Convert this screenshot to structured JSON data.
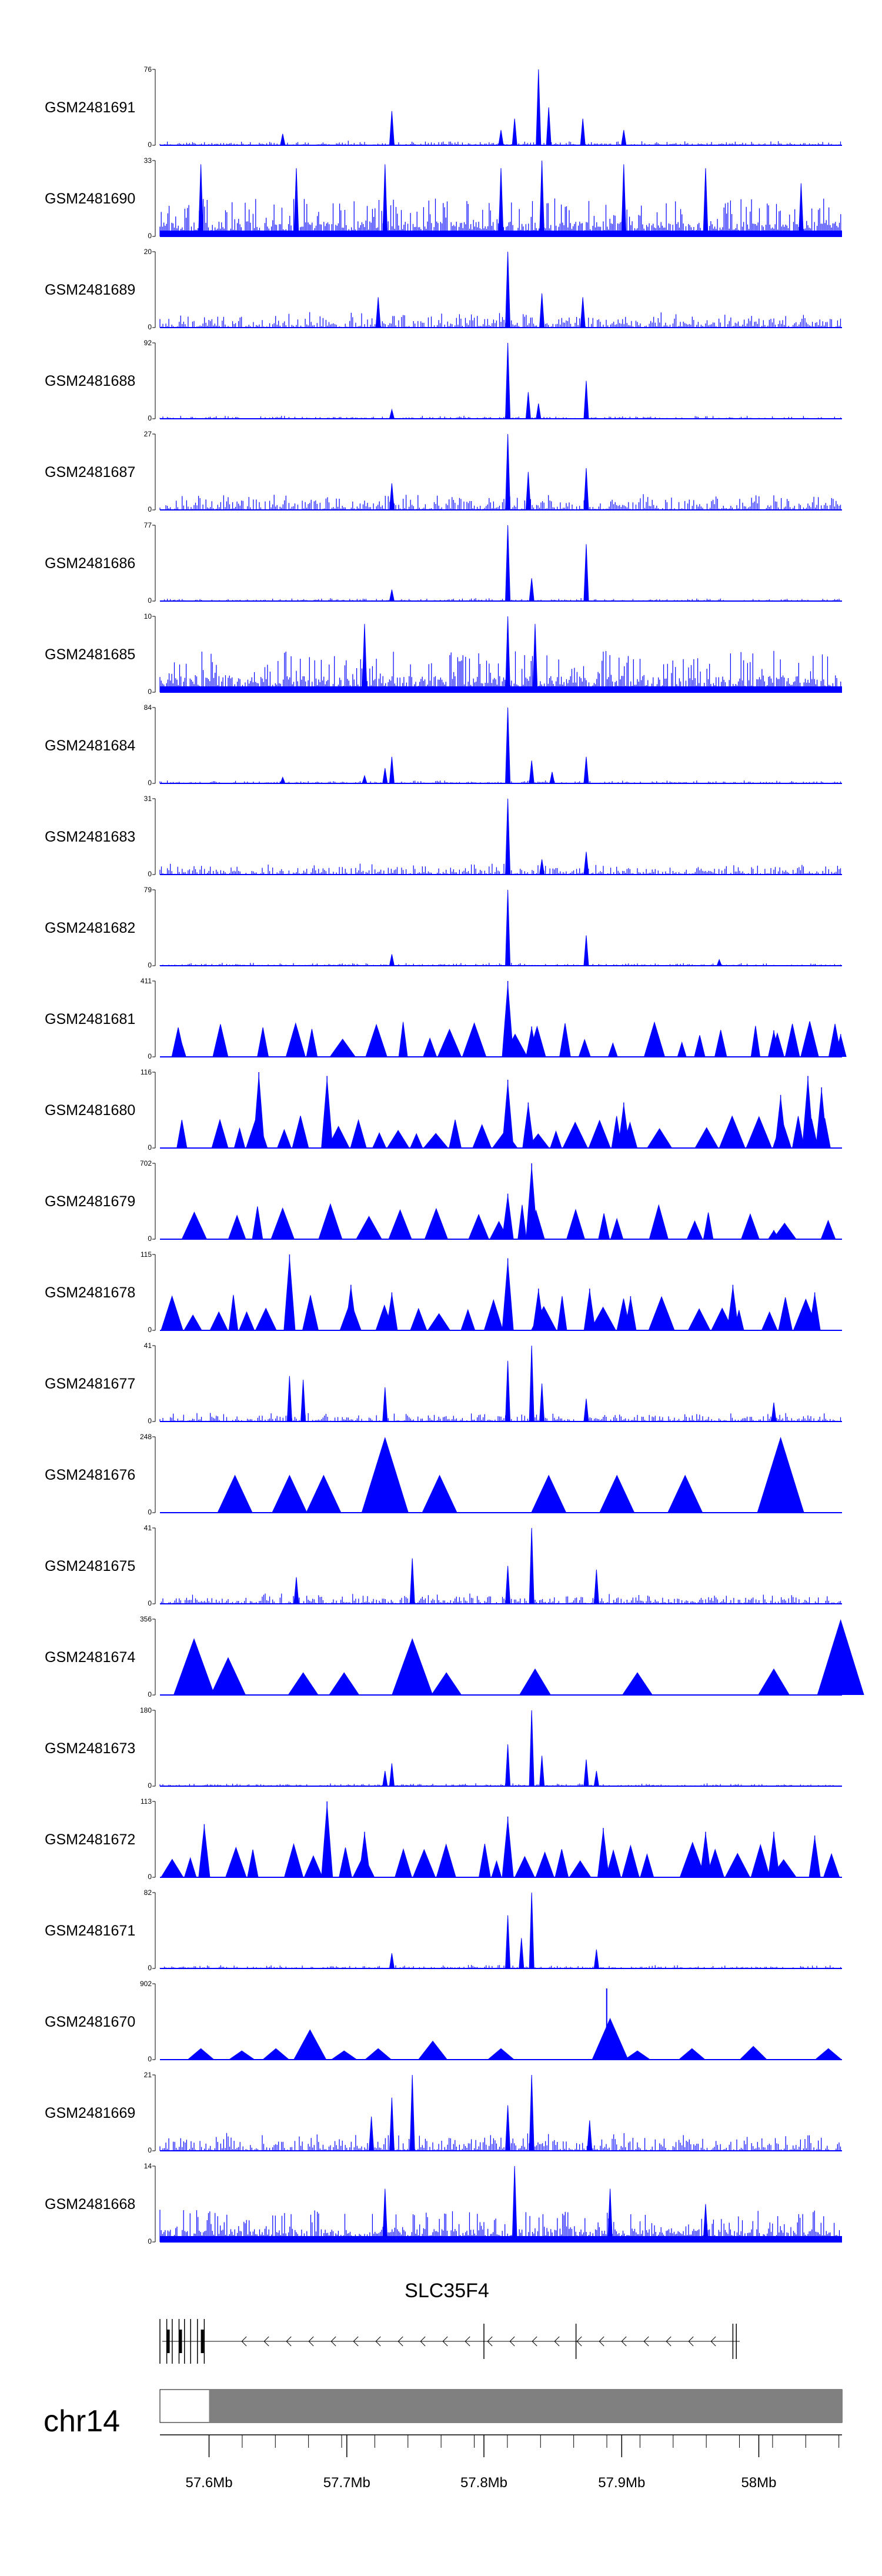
{
  "tracks": [
    {
      "name": "GSM2481691",
      "ymax": "76",
      "ymin": "0",
      "style": "noise",
      "seed": 11,
      "density": 0.06,
      "peaks": [
        [
          0.18,
          0.15
        ],
        [
          0.34,
          0.45
        ],
        [
          0.52,
          0.35
        ],
        [
          0.555,
          1.0
        ],
        [
          0.57,
          0.5
        ],
        [
          0.62,
          0.35
        ],
        [
          0.5,
          0.2
        ],
        [
          0.68,
          0.2
        ]
      ]
    },
    {
      "name": "GSM2481690",
      "ymax": "33",
      "ymin": "0",
      "style": "dense",
      "seed": 12,
      "density": 0.5,
      "peaks": [
        [
          0.06,
          0.95
        ],
        [
          0.2,
          0.9
        ],
        [
          0.33,
          0.95
        ],
        [
          0.5,
          0.9
        ],
        [
          0.56,
          1.0
        ],
        [
          0.68,
          0.95
        ],
        [
          0.8,
          0.9
        ],
        [
          0.94,
          0.7
        ]
      ]
    },
    {
      "name": "GSM2481689",
      "ymax": "20",
      "ymin": "0",
      "style": "noise",
      "seed": 13,
      "density": 0.22,
      "peaks": [
        [
          0.51,
          1.0
        ],
        [
          0.56,
          0.45
        ],
        [
          0.62,
          0.4
        ],
        [
          0.32,
          0.4
        ]
      ]
    },
    {
      "name": "GSM2481688",
      "ymax": "92",
      "ymin": "0",
      "style": "noise",
      "seed": 14,
      "density": 0.04,
      "peaks": [
        [
          0.51,
          1.0
        ],
        [
          0.54,
          0.35
        ],
        [
          0.555,
          0.2
        ],
        [
          0.625,
          0.5
        ],
        [
          0.34,
          0.12
        ]
      ]
    },
    {
      "name": "GSM2481687",
      "ymax": "27",
      "ymin": "0",
      "style": "noise",
      "seed": 15,
      "density": 0.24,
      "peaks": [
        [
          0.51,
          1.0
        ],
        [
          0.54,
          0.5
        ],
        [
          0.625,
          0.55
        ],
        [
          0.34,
          0.35
        ]
      ]
    },
    {
      "name": "GSM2481686",
      "ymax": "77",
      "ymin": "0",
      "style": "noise",
      "seed": 16,
      "density": 0.04,
      "peaks": [
        [
          0.51,
          1.0
        ],
        [
          0.545,
          0.3
        ],
        [
          0.625,
          0.75
        ],
        [
          0.34,
          0.15
        ]
      ]
    },
    {
      "name": "GSM2481685",
      "ymax": "10",
      "ymin": "0",
      "style": "dense",
      "seed": 17,
      "density": 0.55,
      "peaks": [
        [
          0.51,
          1.0
        ],
        [
          0.55,
          0.9
        ],
        [
          0.3,
          0.9
        ]
      ]
    },
    {
      "name": "GSM2481684",
      "ymax": "84",
      "ymin": "0",
      "style": "noise",
      "seed": 18,
      "density": 0.04,
      "peaks": [
        [
          0.51,
          1.0
        ],
        [
          0.545,
          0.3
        ],
        [
          0.575,
          0.15
        ],
        [
          0.625,
          0.35
        ],
        [
          0.34,
          0.35
        ],
        [
          0.33,
          0.2
        ],
        [
          0.3,
          0.1
        ],
        [
          0.18,
          0.08
        ]
      ]
    },
    {
      "name": "GSM2481683",
      "ymax": "31",
      "ymin": "0",
      "style": "noise",
      "seed": 19,
      "density": 0.16,
      "peaks": [
        [
          0.51,
          1.0
        ],
        [
          0.625,
          0.3
        ],
        [
          0.56,
          0.2
        ]
      ]
    },
    {
      "name": "GSM2481682",
      "ymax": "79",
      "ymin": "0",
      "style": "noise",
      "seed": 20,
      "density": 0.04,
      "peaks": [
        [
          0.51,
          1.0
        ],
        [
          0.625,
          0.4
        ],
        [
          0.34,
          0.15
        ],
        [
          0.82,
          0.08
        ]
      ]
    },
    {
      "name": "GSM2481681",
      "ymax": "411",
      "ymin": "0",
      "style": "tri",
      "seed": 21,
      "density": 0.3,
      "peaks": [
        [
          0.51,
          1.0
        ],
        [
          0.545,
          0.4
        ],
        [
          0.9,
          0.35
        ],
        [
          0.03,
          0.25
        ],
        [
          0.998,
          0.3
        ]
      ]
    },
    {
      "name": "GSM2481680",
      "ymax": "116",
      "ymin": "0",
      "style": "tri",
      "seed": 22,
      "density": 0.8,
      "peaks": [
        [
          0.145,
          1.0
        ],
        [
          0.245,
          0.95
        ],
        [
          0.51,
          0.9
        ],
        [
          0.54,
          0.6
        ],
        [
          0.68,
          0.6
        ],
        [
          0.91,
          0.7
        ],
        [
          0.95,
          0.95
        ],
        [
          0.97,
          0.8
        ]
      ]
    },
    {
      "name": "GSM2481679",
      "ymax": "702",
      "ymin": "0",
      "style": "tri",
      "seed": 23,
      "density": 0.15,
      "peaks": [
        [
          0.51,
          0.6
        ],
        [
          0.545,
          1.0
        ],
        [
          0.9,
          0.12
        ]
      ]
    },
    {
      "name": "GSM2481678",
      "ymax": "115",
      "ymin": "0",
      "style": "tri",
      "seed": 24,
      "density": 0.6,
      "peaks": [
        [
          0.19,
          1.0
        ],
        [
          0.28,
          0.6
        ],
        [
          0.34,
          0.5
        ],
        [
          0.51,
          0.95
        ],
        [
          0.555,
          0.55
        ],
        [
          0.63,
          0.55
        ],
        [
          0.69,
          0.45
        ],
        [
          0.84,
          0.6
        ],
        [
          0.96,
          0.5
        ]
      ]
    },
    {
      "name": "GSM2481677",
      "ymax": "41",
      "ymin": "0",
      "style": "noise",
      "seed": 25,
      "density": 0.12,
      "peaks": [
        [
          0.19,
          0.6
        ],
        [
          0.21,
          0.55
        ],
        [
          0.33,
          0.45
        ],
        [
          0.51,
          0.8
        ],
        [
          0.545,
          1.0
        ],
        [
          0.56,
          0.5
        ],
        [
          0.625,
          0.3
        ],
        [
          0.9,
          0.25
        ]
      ]
    },
    {
      "name": "GSM2481676",
      "ymax": "248",
      "ymin": "0",
      "style": "big",
      "seed": 26,
      "density": 0.0,
      "peaks": [
        [
          0.11,
          0.5
        ],
        [
          0.19,
          0.5
        ],
        [
          0.24,
          0.5
        ],
        [
          0.33,
          1.0
        ],
        [
          0.41,
          0.5
        ],
        [
          0.57,
          0.5
        ],
        [
          0.67,
          0.5
        ],
        [
          0.77,
          0.5
        ],
        [
          0.91,
          1.0
        ]
      ]
    },
    {
      "name": "GSM2481675",
      "ymax": "41",
      "ymin": "0",
      "style": "noise",
      "seed": 27,
      "density": 0.14,
      "peaks": [
        [
          0.37,
          0.6
        ],
        [
          0.545,
          1.0
        ],
        [
          0.51,
          0.5
        ],
        [
          0.64,
          0.45
        ],
        [
          0.2,
          0.35
        ]
      ]
    },
    {
      "name": "GSM2481674",
      "ymax": "356",
      "ymin": "0",
      "style": "big",
      "seed": 28,
      "density": 0.0,
      "peaks": [
        [
          0.05,
          0.75
        ],
        [
          0.1,
          0.5
        ],
        [
          0.21,
          0.3
        ],
        [
          0.27,
          0.3
        ],
        [
          0.37,
          0.75
        ],
        [
          0.42,
          0.3
        ],
        [
          0.55,
          0.35
        ],
        [
          0.7,
          0.3
        ],
        [
          0.9,
          0.35
        ],
        [
          0.998,
          1.0
        ]
      ]
    },
    {
      "name": "GSM2481673",
      "ymax": "180",
      "ymin": "0",
      "style": "noise",
      "seed": 29,
      "density": 0.04,
      "peaks": [
        [
          0.51,
          0.55
        ],
        [
          0.545,
          1.0
        ],
        [
          0.56,
          0.4
        ],
        [
          0.625,
          0.35
        ],
        [
          0.64,
          0.2
        ],
        [
          0.34,
          0.3
        ],
        [
          0.33,
          0.2
        ]
      ]
    },
    {
      "name": "GSM2481672",
      "ymax": "113",
      "ymin": "0",
      "style": "tri",
      "seed": 30,
      "density": 0.7,
      "peaks": [
        [
          0.245,
          1.0
        ],
        [
          0.065,
          0.7
        ],
        [
          0.3,
          0.6
        ],
        [
          0.51,
          0.8
        ],
        [
          0.65,
          0.65
        ],
        [
          0.8,
          0.6
        ],
        [
          0.9,
          0.6
        ],
        [
          0.96,
          0.55
        ]
      ]
    },
    {
      "name": "GSM2481671",
      "ymax": "82",
      "ymin": "0",
      "style": "noise",
      "seed": 31,
      "density": 0.05,
      "peaks": [
        [
          0.51,
          0.7
        ],
        [
          0.545,
          1.0
        ],
        [
          0.53,
          0.4
        ],
        [
          0.64,
          0.25
        ],
        [
          0.34,
          0.2
        ]
      ]
    },
    {
      "name": "GSM2481670",
      "ymax": "902",
      "ymin": "0",
      "style": "big",
      "seed": 32,
      "density": 0.0,
      "peaks": [
        [
          0.06,
          0.15
        ],
        [
          0.12,
          0.12
        ],
        [
          0.17,
          0.15
        ],
        [
          0.22,
          0.4
        ],
        [
          0.27,
          0.12
        ],
        [
          0.32,
          0.15
        ],
        [
          0.4,
          0.25
        ],
        [
          0.5,
          0.15
        ],
        [
          0.66,
          0.55
        ],
        [
          0.7,
          0.12
        ],
        [
          0.78,
          0.15
        ],
        [
          0.87,
          0.18
        ],
        [
          0.98,
          0.15
        ]
      ]
    },
    {
      "name": "GSM2481669",
      "ymax": "21",
      "ymin": "0",
      "style": "noise",
      "seed": 33,
      "density": 0.25,
      "peaks": [
        [
          0.37,
          1.0
        ],
        [
          0.34,
          0.7
        ],
        [
          0.545,
          1.0
        ],
        [
          0.51,
          0.6
        ],
        [
          0.31,
          0.45
        ],
        [
          0.63,
          0.4
        ]
      ]
    },
    {
      "name": "GSM2481668",
      "ymax": "14",
      "ymin": "0",
      "style": "dense",
      "seed": 34,
      "density": 0.42,
      "peaks": [
        [
          0.52,
          1.0
        ],
        [
          0.33,
          0.7
        ],
        [
          0.66,
          0.7
        ],
        [
          0.8,
          0.5
        ]
      ]
    }
  ],
  "gene": {
    "name": "SLC35F4",
    "strand": "-"
  },
  "axis": {
    "chromosome": "chr14",
    "ticks": [
      "57.6Mb",
      "57.7Mb",
      "57.8Mb",
      "57.9Mb",
      "58Mb"
    ]
  },
  "colors": {
    "signal": "#0000ff",
    "signal_dark": "#00008b",
    "ideogram": "#808080",
    "axis": "#000000"
  }
}
